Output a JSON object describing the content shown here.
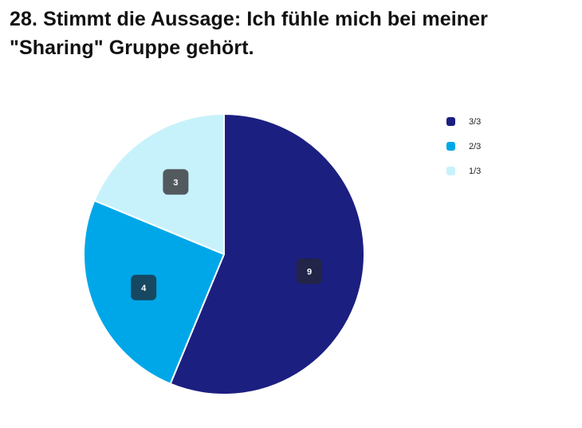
{
  "chart_data": {
    "type": "pie",
    "title": "28. Stimmt die Aussage: Ich fühle mich bei meiner \"Sharing\" Gruppe gehört.",
    "categories": [
      "3/3",
      "2/3",
      "1/3"
    ],
    "values": [
      9,
      4,
      3
    ],
    "colors": [
      "#1b1f80",
      "#00a7e8",
      "#c8f2fb"
    ],
    "label_badge_colors": [
      "#222448",
      "#174861",
      "#525a5e"
    ],
    "start_angle": "12 o'clock",
    "direction": "clockwise",
    "legend_position": "top-right"
  }
}
